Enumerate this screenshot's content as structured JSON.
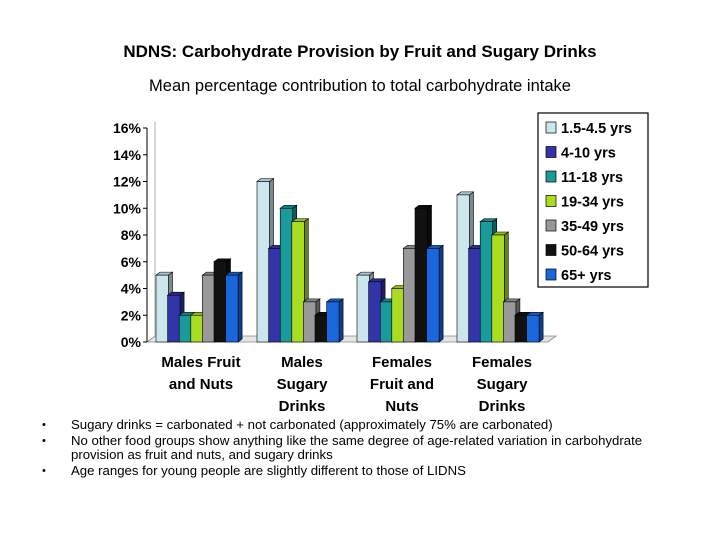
{
  "title": "NDNS: Carbohydrate Provision by Fruit and Sugary Drinks",
  "subtitle": "Mean percentage contribution to total carbohydrate intake",
  "chart_data": {
    "type": "bar",
    "categories": [
      [
        "Males",
        "Fruit",
        "and Nuts"
      ],
      [
        "Males",
        "Sugary",
        "Drinks"
      ],
      [
        "Females",
        "Fruit and",
        "Nuts"
      ],
      [
        "Females",
        "Sugary",
        "Drinks"
      ]
    ],
    "y_ticks": [
      "0%",
      "2%",
      "4%",
      "6%",
      "8%",
      "10%",
      "12%",
      "14%",
      "16%"
    ],
    "ylim": [
      0,
      16
    ],
    "legend_position": "right",
    "grid": false,
    "series": [
      {
        "name": "1.5-4.5 yrs",
        "color": "#cce6ee",
        "values": [
          5,
          12,
          5,
          11
        ]
      },
      {
        "name": "4-10 yrs",
        "color": "#3333aa",
        "values": [
          3.5,
          7,
          4.5,
          7
        ]
      },
      {
        "name": "11-18 yrs",
        "color": "#1a9a9a",
        "values": [
          2,
          10,
          3,
          9
        ]
      },
      {
        "name": "19-34 yrs",
        "color": "#aadd22",
        "values": [
          2,
          9,
          4,
          8
        ]
      },
      {
        "name": "35-49 yrs",
        "color": "#999999",
        "values": [
          5,
          3,
          7,
          3
        ]
      },
      {
        "name": "50-64 yrs",
        "color": "#111111",
        "values": [
          6,
          2,
          10,
          2
        ]
      },
      {
        "name": "65+ yrs",
        "color": "#1a66dd",
        "values": [
          5,
          3,
          7,
          2
        ]
      }
    ]
  },
  "bullets": [
    "Sugary drinks = carbonated + not carbonated (approximately 75% are carbonated)",
    "No other food groups show anything like the same degree of age-related variation in carbohydrate provision as fruit and nuts, and sugary drinks",
    "Age ranges for young people are slightly different to those of LIDNS"
  ],
  "bullet_symbol": "•"
}
